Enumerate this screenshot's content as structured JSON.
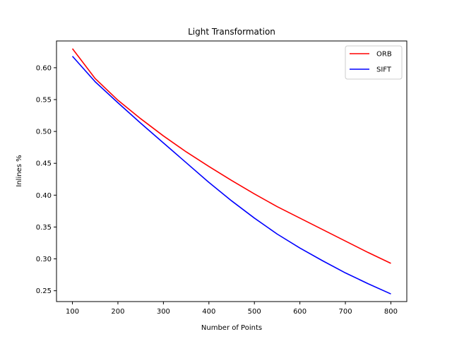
{
  "chart_data": {
    "type": "line",
    "title": "Light Transformation",
    "xlabel": "Number of Points",
    "ylabel": "Inlines %",
    "xlim": [
      65,
      835
    ],
    "ylim": [
      0.233,
      0.642
    ],
    "xticks": [
      100,
      200,
      300,
      400,
      500,
      600,
      700,
      800
    ],
    "yticks": [
      0.25,
      0.3,
      0.35,
      0.4,
      0.45,
      0.5,
      0.55,
      0.6
    ],
    "ytick_labels": [
      "0.25",
      "0.30",
      "0.35",
      "0.40",
      "0.45",
      "0.50",
      "0.55",
      "0.60"
    ],
    "grid": false,
    "legend_position": "top-right",
    "x": [
      100,
      150,
      200,
      250,
      300,
      350,
      400,
      450,
      500,
      550,
      600,
      650,
      700,
      750,
      800
    ],
    "series": [
      {
        "name": "ORB",
        "color": "#ff0000",
        "values": [
          0.63,
          0.583,
          0.549,
          0.52,
          0.493,
          0.468,
          0.445,
          0.423,
          0.402,
          0.382,
          0.364,
          0.346,
          0.328,
          0.31,
          0.293
        ]
      },
      {
        "name": "SIFT",
        "color": "#0000ff",
        "values": [
          0.618,
          0.578,
          0.545,
          0.513,
          0.482,
          0.451,
          0.42,
          0.391,
          0.364,
          0.339,
          0.317,
          0.297,
          0.278,
          0.261,
          0.245
        ]
      }
    ]
  }
}
